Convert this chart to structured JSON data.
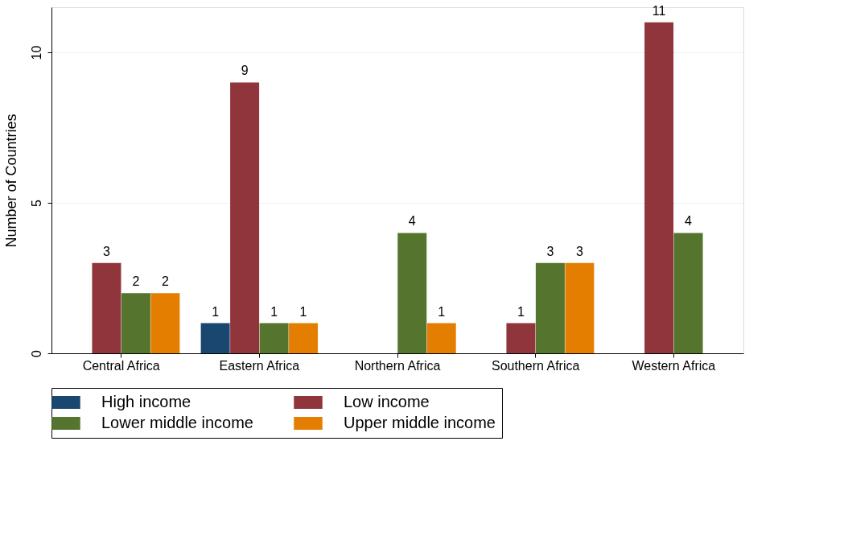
{
  "chart_data": {
    "type": "bar",
    "ylabel": "Number of Countries",
    "categories": [
      "Central Africa",
      "Eastern Africa",
      "Northern Africa",
      "Southern Africa",
      "Western Africa"
    ],
    "series": [
      {
        "name": "High income",
        "color": "#1a476f",
        "values": [
          null,
          1,
          null,
          null,
          null
        ]
      },
      {
        "name": "Low income",
        "color": "#90353b",
        "values": [
          3,
          9,
          null,
          1,
          11
        ]
      },
      {
        "name": "Lower middle income",
        "color": "#55752f",
        "values": [
          2,
          1,
          4,
          3,
          4
        ]
      },
      {
        "name": "Upper middle income",
        "color": "#e37e00",
        "values": [
          2,
          1,
          1,
          3,
          null
        ]
      }
    ],
    "ylim": [
      0,
      11.5
    ],
    "yticks": [
      0,
      5,
      10
    ],
    "grid": "y",
    "legend": "bottom",
    "data_labels": true
  }
}
